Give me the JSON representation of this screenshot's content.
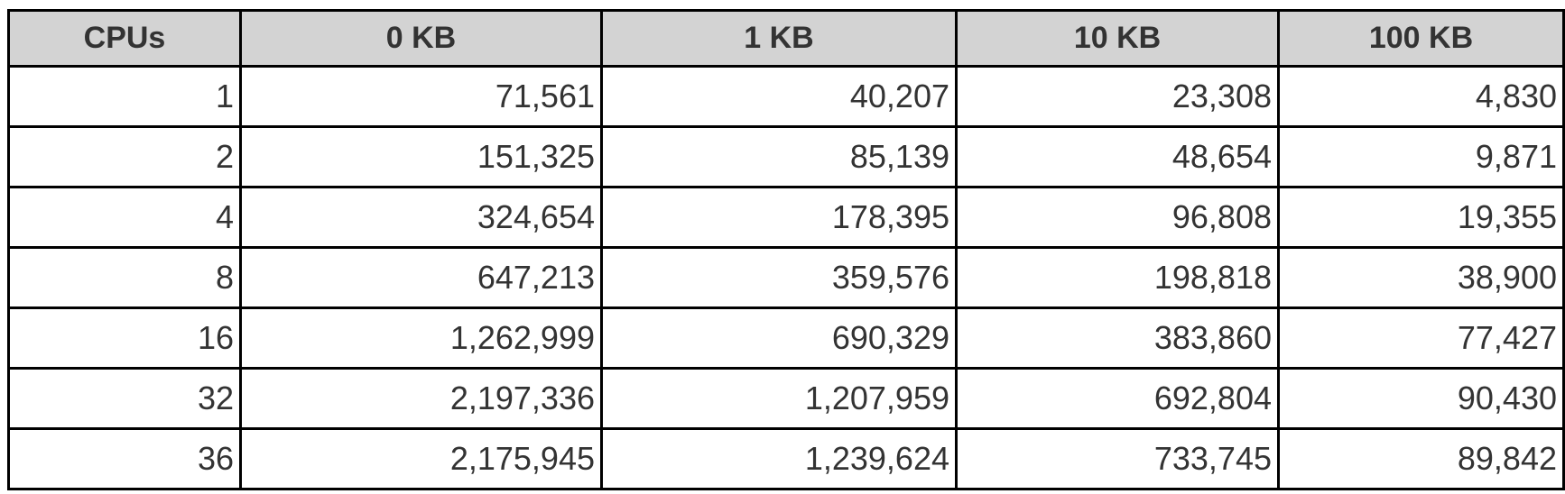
{
  "chart_data": {
    "type": "table",
    "columns": [
      "CPUs",
      "0 KB",
      "1 KB",
      "10 KB",
      "100 KB"
    ],
    "rows": [
      [
        "1",
        "71,561",
        "40,207",
        "23,308",
        "4,830"
      ],
      [
        "2",
        "151,325",
        "85,139",
        "48,654",
        "9,871"
      ],
      [
        "4",
        "324,654",
        "178,395",
        "96,808",
        "19,355"
      ],
      [
        "8",
        "647,213",
        "359,576",
        "198,818",
        "38,900"
      ],
      [
        "16",
        "1,262,999",
        "690,329",
        "383,860",
        "77,427"
      ],
      [
        "32",
        "2,197,336",
        "1,207,959",
        "692,804",
        "90,430"
      ],
      [
        "36",
        "2,175,945",
        "1,239,624",
        "733,745",
        "89,842"
      ]
    ],
    "colors": {
      "header_background": "#d3d3d3",
      "border": "#000000",
      "text": "#333333"
    }
  }
}
